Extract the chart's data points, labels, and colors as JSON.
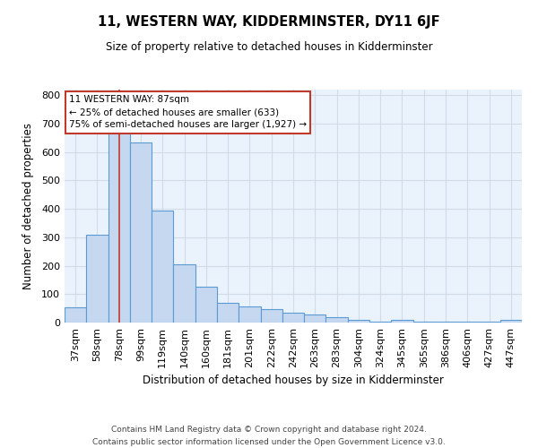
{
  "title": "11, WESTERN WAY, KIDDERMINSTER, DY11 6JF",
  "subtitle": "Size of property relative to detached houses in Kidderminster",
  "xlabel": "Distribution of detached houses by size in Kidderminster",
  "ylabel": "Number of detached properties",
  "footer1": "Contains HM Land Registry data © Crown copyright and database right 2024.",
  "footer2": "Contains public sector information licensed under the Open Government Licence v3.0.",
  "categories": [
    "37sqm",
    "58sqm",
    "78sqm",
    "99sqm",
    "119sqm",
    "140sqm",
    "160sqm",
    "181sqm",
    "201sqm",
    "222sqm",
    "242sqm",
    "263sqm",
    "283sqm",
    "304sqm",
    "324sqm",
    "345sqm",
    "365sqm",
    "386sqm",
    "406sqm",
    "427sqm",
    "447sqm"
  ],
  "values": [
    55,
    310,
    760,
    635,
    395,
    205,
    125,
    70,
    58,
    48,
    35,
    28,
    20,
    10,
    2,
    10,
    2,
    2,
    2,
    2,
    8
  ],
  "bar_color": "#c5d8f0",
  "bar_edge_color": "#5b9bd5",
  "highlight_index": 2,
  "highlight_line_color": "#c0392b",
  "ylim": [
    0,
    820
  ],
  "yticks": [
    0,
    100,
    200,
    300,
    400,
    500,
    600,
    700,
    800
  ],
  "annotation_title": "11 WESTERN WAY: 87sqm",
  "annotation_line1": "← 25% of detached houses are smaller (633)",
  "annotation_line2": "75% of semi-detached houses are larger (1,927) →",
  "annotation_box_color": "#ffffff",
  "annotation_box_edge": "#c0392b",
  "grid_color": "#d0dce8",
  "bg_color": "#eaf2fb"
}
